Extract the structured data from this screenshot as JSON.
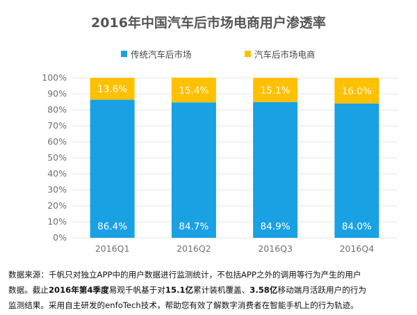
{
  "colors": {
    "series1": "#1AA1E4",
    "series2": "#FFC000",
    "grid": "#E6E6E6",
    "axis_text": "#6F6F6F"
  },
  "source": {
    "line1": "数据来源：千帆只对独立APP中的用户数据进行监测统计，不包括APP之外的调用等行为产生的用户",
    "line2_a": "数据。截止",
    "line2_b": "2016年第4季度",
    "line2_c": "易观千帆基于对",
    "line2_d": "15.1亿",
    "line2_e": "累计装机覆盖、",
    "line2_f": "3.58亿",
    "line2_g": "移动端月活跃用户的行为",
    "line3": "监测结果。采用自主研发的enfoTech技术，帮助您有效了解数字消费者在智能手机上的行为轨迹。"
  },
  "chart_data": {
    "type": "bar",
    "stacked": true,
    "title": "2016年中国汽车后市场电商用户渗透率",
    "categories": [
      "2016Q1",
      "2016Q2",
      "2016Q3",
      "2016Q4"
    ],
    "series": [
      {
        "name": "传统汽车后市场",
        "values": [
          86.4,
          84.7,
          84.9,
          84.0
        ],
        "labels": [
          "86.4%",
          "84.7%",
          "84.9%",
          "84.0%"
        ]
      },
      {
        "name": "汽车后市场电商",
        "values": [
          13.6,
          15.4,
          15.1,
          16.0
        ],
        "labels": [
          "13.6%",
          "15.4%",
          "15.1%",
          "16.0%"
        ]
      }
    ],
    "yticks": [
      "0%",
      "10%",
      "20%",
      "30%",
      "40%",
      "50%",
      "60%",
      "70%",
      "80%",
      "90%",
      "100%"
    ],
    "ylim": [
      0,
      100
    ],
    "grid": true,
    "legend_position": "top"
  }
}
